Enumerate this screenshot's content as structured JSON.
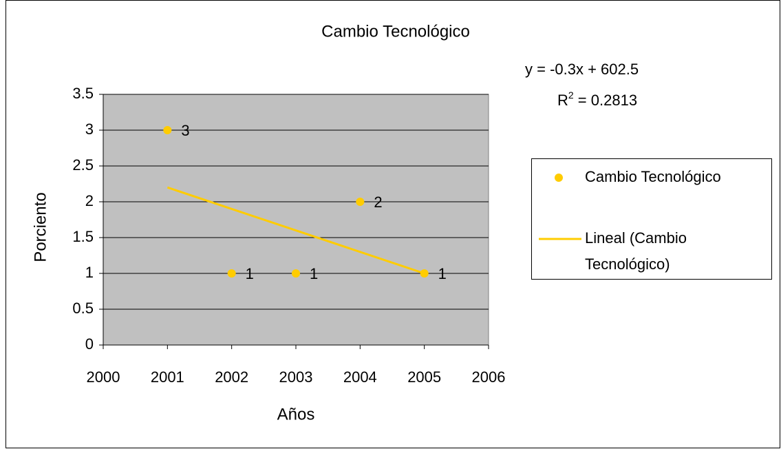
{
  "chart_data": {
    "type": "scatter",
    "title": "Cambio Tecnológico",
    "x_label": "Años",
    "y_label": "Porciento",
    "x": [
      2001,
      2002,
      2003,
      2004,
      2005
    ],
    "series": [
      {
        "name": "Cambio Tecnológico",
        "color": "#ffcc00",
        "values": [
          3,
          1,
          1,
          2,
          1
        ]
      }
    ],
    "trendline": {
      "name": "Lineal (Cambio Tecnológico)",
      "color": "#ffcc00",
      "x": [
        2001,
        2005
      ],
      "values": [
        2.2,
        1.0
      ],
      "equation": "y = -0.3x + 602.5",
      "r_squared": [
        "R",
        "2",
        " = 0.2813"
      ]
    },
    "xlim": [
      2000,
      2006
    ],
    "xticks": [
      2000,
      2001,
      2002,
      2003,
      2004,
      2005,
      2006
    ],
    "ylim": [
      0,
      3.5
    ],
    "yticks": [
      0,
      0.5,
      1,
      1.5,
      2,
      2.5,
      3,
      3.5
    ],
    "grid": true,
    "plot_background": "#c0c0c0",
    "legend": "right"
  }
}
